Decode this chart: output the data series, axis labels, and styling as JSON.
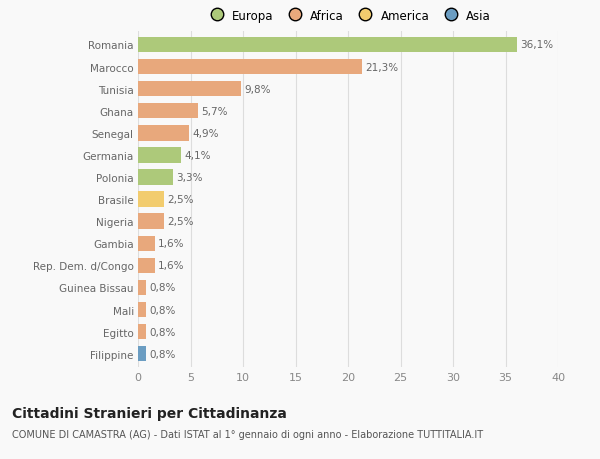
{
  "countries": [
    "Romania",
    "Marocco",
    "Tunisia",
    "Ghana",
    "Senegal",
    "Germania",
    "Polonia",
    "Brasile",
    "Nigeria",
    "Gambia",
    "Rep. Dem. d/Congo",
    "Guinea Bissau",
    "Mali",
    "Egitto",
    "Filippine"
  ],
  "values": [
    36.1,
    21.3,
    9.8,
    5.7,
    4.9,
    4.1,
    3.3,
    2.5,
    2.5,
    1.6,
    1.6,
    0.8,
    0.8,
    0.8,
    0.8
  ],
  "labels": [
    "36,1%",
    "21,3%",
    "9,8%",
    "5,7%",
    "4,9%",
    "4,1%",
    "3,3%",
    "2,5%",
    "2,5%",
    "1,6%",
    "1,6%",
    "0,8%",
    "0,8%",
    "0,8%",
    "0,8%"
  ],
  "colors": [
    "#adc97a",
    "#e8a87c",
    "#e8a87c",
    "#e8a87c",
    "#e8a87c",
    "#adc97a",
    "#adc97a",
    "#f2cc6e",
    "#e8a87c",
    "#e8a87c",
    "#e8a87c",
    "#e8a87c",
    "#e8a87c",
    "#e8a87c",
    "#6b9dc2"
  ],
  "legend_labels": [
    "Europa",
    "Africa",
    "America",
    "Asia"
  ],
  "legend_colors": [
    "#adc97a",
    "#e8a87c",
    "#f2cc6e",
    "#6b9dc2"
  ],
  "xlim": [
    0,
    40
  ],
  "xticks": [
    0,
    5,
    10,
    15,
    20,
    25,
    30,
    35,
    40
  ],
  "title": "Cittadini Stranieri per Cittadinanza",
  "subtitle": "COMUNE DI CAMASTRA (AG) - Dati ISTAT al 1° gennaio di ogni anno - Elaborazione TUTTITALIA.IT",
  "bg_color": "#f9f9f9",
  "grid_color": "#dddddd",
  "bar_height": 0.7,
  "label_fontsize": 7.5,
  "ytick_fontsize": 7.5,
  "xtick_fontsize": 8.0,
  "title_fontsize": 10,
  "subtitle_fontsize": 7.0,
  "legend_fontsize": 8.5
}
